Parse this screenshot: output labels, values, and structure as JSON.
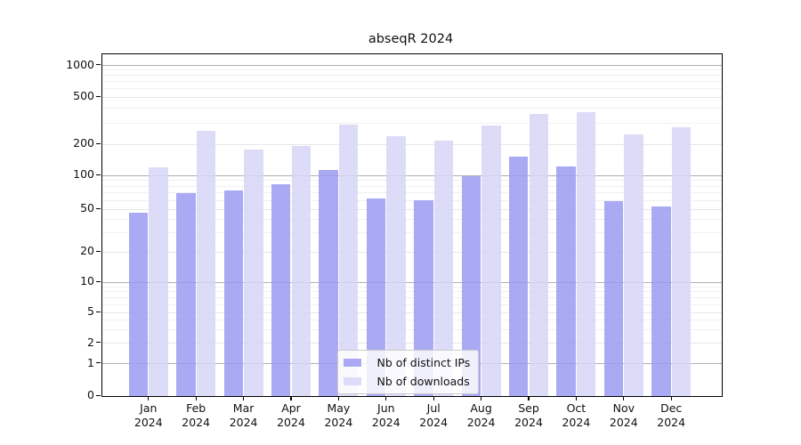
{
  "title": "abseqR 2024",
  "chart_data": {
    "type": "bar",
    "title": "abseqR 2024",
    "categories": [
      "Jan",
      "Feb",
      "Mar",
      "Apr",
      "May",
      "Jun",
      "Jul",
      "Aug",
      "Sep",
      "Oct",
      "Nov",
      "Dec"
    ],
    "x_year_label": "2024",
    "series": [
      {
        "name": "Nb of distinct IPs",
        "color": "#aaaaf4",
        "values": [
          46,
          70,
          74,
          83,
          112,
          62,
          60,
          98,
          151,
          122,
          59,
          53
        ]
      },
      {
        "name": "Nb of downloads",
        "color": "#dcdcf8",
        "values": [
          120,
          258,
          178,
          192,
          292,
          235,
          214,
          290,
          362,
          374,
          240,
          278
        ]
      }
    ],
    "xlabel": "",
    "ylabel": "",
    "y_axis": {
      "scale": "log-like",
      "tick_labels": [
        "0",
        "1",
        "2",
        "5",
        "10",
        "20",
        "50",
        "100",
        "200",
        "500",
        "1000"
      ],
      "tick_values": [
        0,
        1,
        2,
        5,
        10,
        20,
        50,
        100,
        200,
        500,
        1000
      ]
    },
    "legend": {
      "position": "bottom-center",
      "entries": [
        "Nb of distinct IPs",
        "Nb of downloads"
      ]
    },
    "grid": true
  },
  "colors": {
    "grid_major": "#b0b0b0",
    "grid_labeled": "#e7e7e7",
    "grid_minor": "#f0f0f0",
    "spine": "#000000"
  }
}
